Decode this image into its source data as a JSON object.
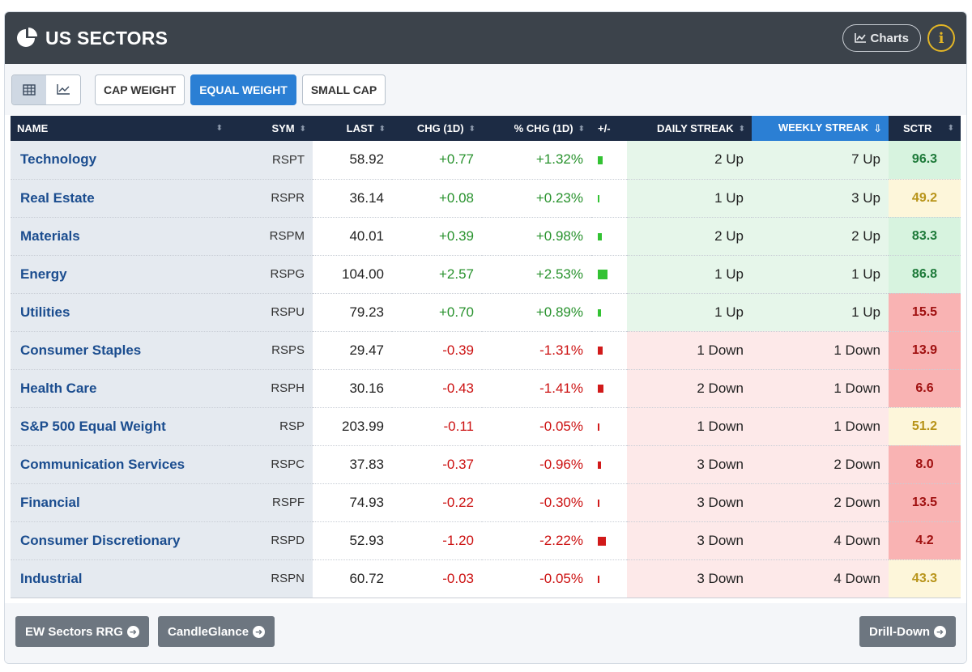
{
  "header": {
    "title": "US SECTORS",
    "charts_label": "Charts",
    "info_label": "i"
  },
  "toolbar": {
    "views": [
      "table-view",
      "chart-view"
    ],
    "weights": [
      "CAP WEIGHT",
      "EQUAL WEIGHT",
      "SMALL CAP"
    ],
    "active_weight": "EQUAL WEIGHT"
  },
  "columns": [
    "NAME",
    "SYM",
    "LAST",
    "CHG (1D)",
    "% CHG (1D)",
    "+/-",
    "DAILY STREAK",
    "WEEKLY STREAK",
    "SCTR"
  ],
  "sorted_column": "WEEKLY STREAK",
  "rows": [
    {
      "name": "Technology",
      "sym": "RSPT",
      "last": "58.92",
      "chg": "+0.77",
      "pct": "+1.32%",
      "pct_value": 1.32,
      "daily": "2 Up",
      "weekly": "7 Up",
      "sctr": "96.3"
    },
    {
      "name": "Real Estate",
      "sym": "RSPR",
      "last": "36.14",
      "chg": "+0.08",
      "pct": "+0.23%",
      "pct_value": 0.23,
      "daily": "1 Up",
      "weekly": "3 Up",
      "sctr": "49.2"
    },
    {
      "name": "Materials",
      "sym": "RSPM",
      "last": "40.01",
      "chg": "+0.39",
      "pct": "+0.98%",
      "pct_value": 0.98,
      "daily": "2 Up",
      "weekly": "2 Up",
      "sctr": "83.3"
    },
    {
      "name": "Energy",
      "sym": "RSPG",
      "last": "104.00",
      "chg": "+2.57",
      "pct": "+2.53%",
      "pct_value": 2.53,
      "daily": "1 Up",
      "weekly": "1 Up",
      "sctr": "86.8"
    },
    {
      "name": "Utilities",
      "sym": "RSPU",
      "last": "79.23",
      "chg": "+0.70",
      "pct": "+0.89%",
      "pct_value": 0.89,
      "daily": "1 Up",
      "weekly": "1 Up",
      "sctr": "15.5"
    },
    {
      "name": "Consumer Staples",
      "sym": "RSPS",
      "last": "29.47",
      "chg": "-0.39",
      "pct": "-1.31%",
      "pct_value": -1.31,
      "daily": "1 Down",
      "weekly": "1 Down",
      "sctr": "13.9"
    },
    {
      "name": "Health Care",
      "sym": "RSPH",
      "last": "30.16",
      "chg": "-0.43",
      "pct": "-1.41%",
      "pct_value": -1.41,
      "daily": "2 Down",
      "weekly": "1 Down",
      "sctr": "6.6"
    },
    {
      "name": "S&P 500 Equal Weight",
      "sym": "RSP",
      "last": "203.99",
      "chg": "-0.11",
      "pct": "-0.05%",
      "pct_value": -0.05,
      "daily": "1 Down",
      "weekly": "1 Down",
      "sctr": "51.2"
    },
    {
      "name": "Communication Services",
      "sym": "RSPC",
      "last": "37.83",
      "chg": "-0.37",
      "pct": "-0.96%",
      "pct_value": -0.96,
      "daily": "3 Down",
      "weekly": "2 Down",
      "sctr": "8.0"
    },
    {
      "name": "Financial",
      "sym": "RSPF",
      "last": "74.93",
      "chg": "-0.22",
      "pct": "-0.30%",
      "pct_value": -0.3,
      "daily": "3 Down",
      "weekly": "2 Down",
      "sctr": "13.5"
    },
    {
      "name": "Consumer Discretionary",
      "sym": "RSPD",
      "last": "52.93",
      "chg": "-1.20",
      "pct": "-2.22%",
      "pct_value": -2.22,
      "daily": "3 Down",
      "weekly": "4 Down",
      "sctr": "4.2"
    },
    {
      "name": "Industrial",
      "sym": "RSPN",
      "last": "60.72",
      "chg": "-0.03",
      "pct": "-0.05%",
      "pct_value": -0.05,
      "daily": "3 Down",
      "weekly": "4 Down",
      "sctr": "43.3"
    }
  ],
  "colors": {
    "up_text": "#28922d",
    "down_text": "#cc1111",
    "up_bg": "#e6f6ea",
    "down_bg": "#fde9e9",
    "sctr_high_bg": "#d7f3df",
    "sctr_high_text": "#1e7a3a",
    "sctr_mid_bg": "#fdf6da",
    "sctr_mid_text": "#b8941a",
    "sctr_low_bg": "#f9b3b3",
    "sctr_low_text": "#a01010"
  },
  "footer": {
    "left1": "EW Sectors RRG",
    "left2": "CandleGlance",
    "right": "Drill-Down"
  }
}
